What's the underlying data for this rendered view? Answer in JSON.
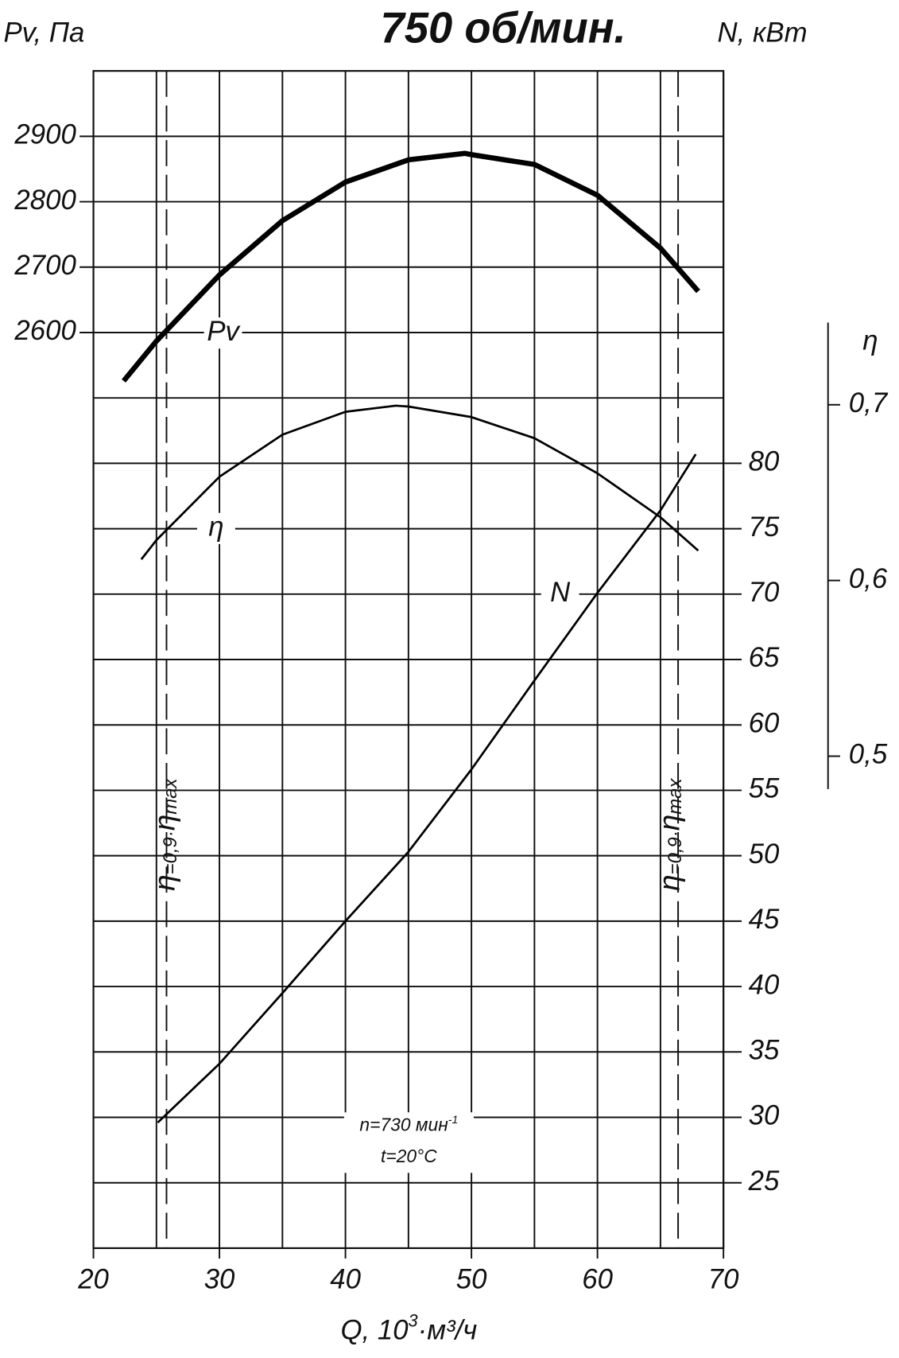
{
  "chart_data": {
    "type": "line",
    "title": "750 об/мин.",
    "y_label": "Pv, Па",
    "y2_label": "N, кВт",
    "y3_label": "η",
    "x_label": [
      "Q, 10",
      "3",
      "·м³/ч"
    ],
    "xlim": [
      20,
      70
    ],
    "xticks": [
      20,
      30,
      40,
      50,
      60,
      70
    ],
    "xgrid": [
      20,
      25,
      30,
      35,
      40,
      45,
      50,
      55,
      60,
      65,
      70
    ],
    "ylim": [
      1200,
      3000
    ],
    "yticks": [
      2600,
      2700,
      2800,
      2900
    ],
    "y2lim": [
      20,
      110
    ],
    "y2ticks": [
      25,
      30,
      35,
      40,
      45,
      50,
      55,
      60,
      65,
      70,
      75,
      80
    ],
    "ygrid": [
      25,
      30,
      35,
      40,
      45,
      50,
      55,
      60,
      65,
      70,
      75,
      80,
      85,
      90,
      95,
      100,
      105
    ],
    "y3lim": [
      0.22,
      0.89
    ],
    "y3ticks": [
      {
        "value": 0.5,
        "label": "0,5"
      },
      {
        "value": 0.6,
        "label": "0,6"
      },
      {
        "value": 0.7,
        "label": "0,7"
      }
    ],
    "series": [
      {
        "name": "Pv",
        "axis": "y",
        "color": "#000000",
        "x": [
          22.4,
          25,
          30,
          35,
          40,
          45,
          49.5,
          50,
          55,
          60,
          65,
          68
        ],
        "values": [
          2526,
          2587,
          2688,
          2771,
          2830,
          2864,
          2874,
          2872,
          2857,
          2810,
          2729,
          2663
        ]
      },
      {
        "name": "η",
        "axis": "y3",
        "color": "#000000",
        "x": [
          23.8,
          25,
          30,
          35,
          40,
          44,
          45,
          50,
          55,
          60,
          65,
          68
        ],
        "values": [
          0.612,
          0.623,
          0.659,
          0.683,
          0.696,
          0.6995,
          0.699,
          0.693,
          0.681,
          0.661,
          0.636,
          0.617
        ]
      },
      {
        "name": "N",
        "axis": "y2",
        "color": "#000000",
        "x": [
          25.1,
          30,
          35,
          40,
          45,
          50,
          55,
          60,
          65,
          67.8
        ],
        "values": [
          29.6,
          34.1,
          39.5,
          45.0,
          50.3,
          56.6,
          63.4,
          70.1,
          76.4,
          80.7
        ]
      }
    ],
    "boundaries": [
      25.8,
      66.4
    ],
    "boundary_label": [
      "η",
      "=0,9·",
      "η",
      "max"
    ],
    "annotations": [
      [
        "n=730 мин",
        "-1"
      ],
      [
        "t=20°C"
      ]
    ]
  }
}
